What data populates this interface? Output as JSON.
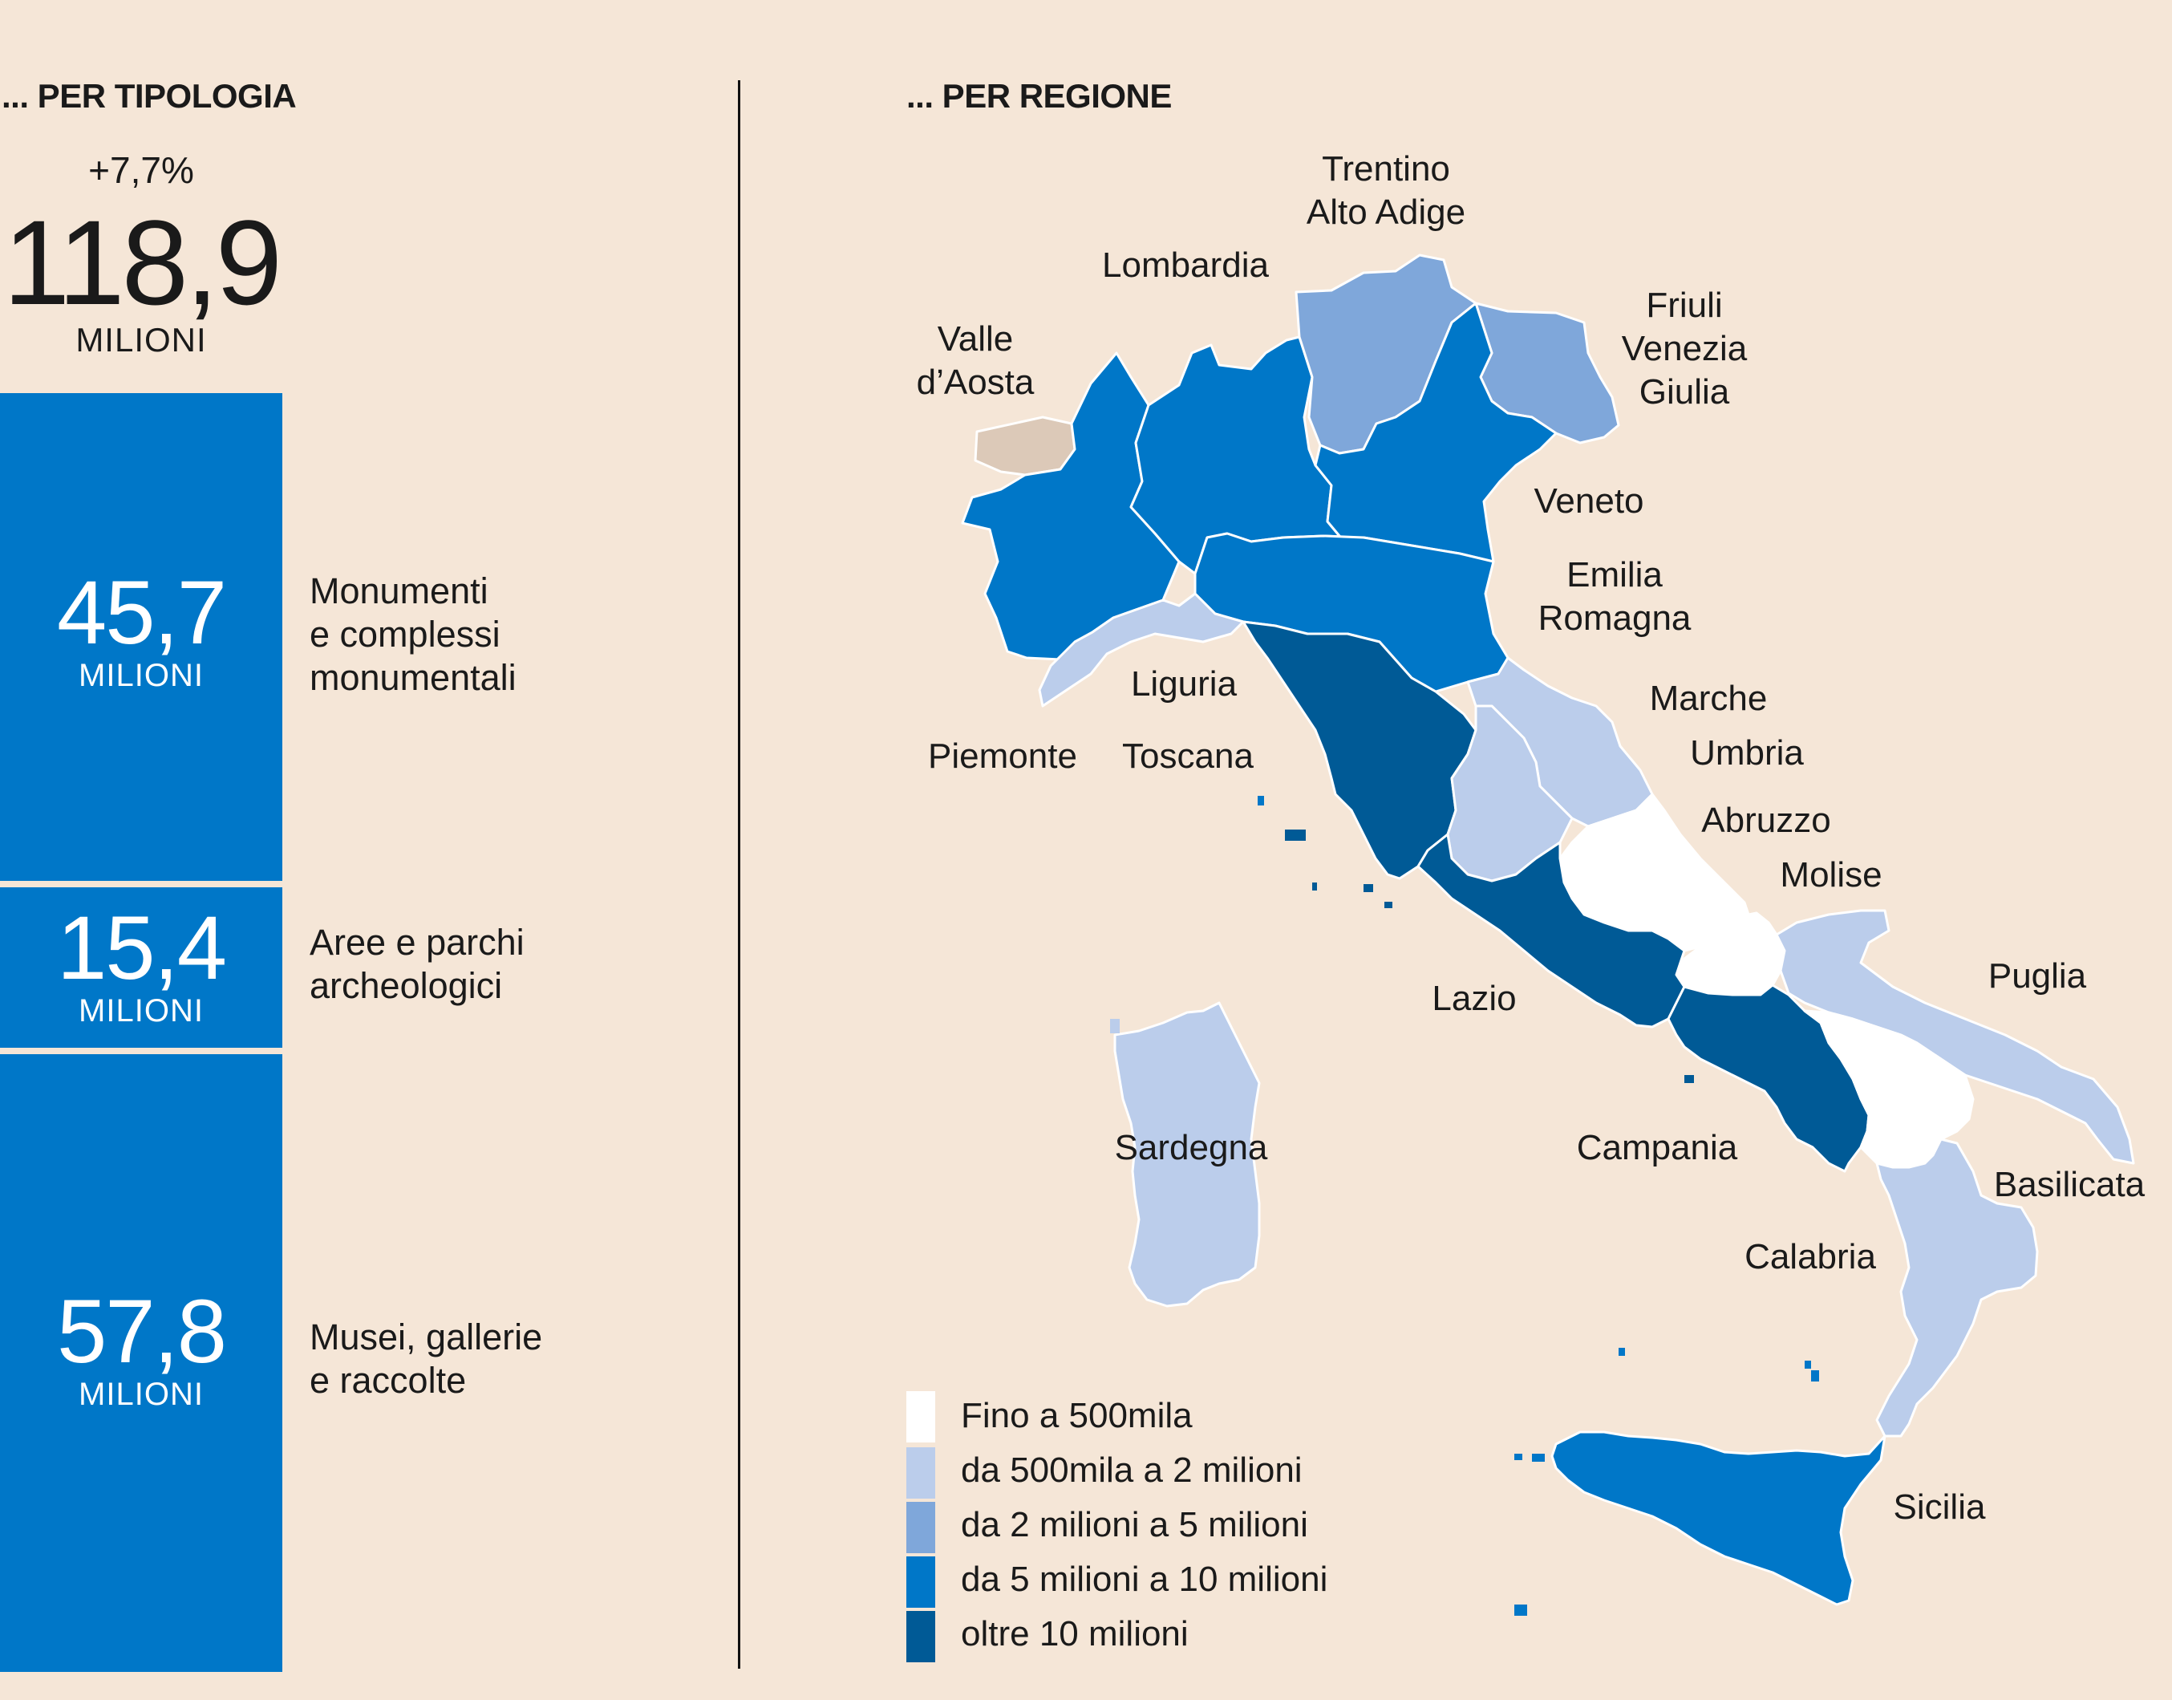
{
  "left_heading": "... PER TIPOLOGIA",
  "right_heading": "... PER REGIONE",
  "total": {
    "change": "+7,7%",
    "value": "118,9",
    "unit": "MILIONI"
  },
  "types": [
    {
      "value": "45,7",
      "unit": "MILIONI",
      "label_lines": [
        "Monumenti",
        "e complessi",
        "monumentali"
      ]
    },
    {
      "value": "15,4",
      "unit": "MILIONI",
      "label_lines": [
        "Aree e parchi",
        "archeologici"
      ]
    },
    {
      "value": "57,8",
      "unit": "MILIONI",
      "label_lines": [
        "Musei, gallerie",
        "e raccolte"
      ]
    }
  ],
  "legend": [
    {
      "label": "Fino a 500mila",
      "color": "#FFFFFF"
    },
    {
      "label": "da 500mila a 2 milioni",
      "color": "#BBCDEB"
    },
    {
      "label": "da 2 milioni a 5 milioni",
      "color": "#7FA7DA"
    },
    {
      "label": "da 5 milioni a 10 milioni",
      "color": "#0077C8"
    },
    {
      "label": "oltre 10 milioni",
      "color": "#005A96"
    }
  ],
  "regions": {
    "valle_aosta": {
      "lines": [
        "Valle",
        "d’Aosta"
      ],
      "color": "#DCC9B8"
    },
    "piemonte": {
      "lines": [
        "Piemonte"
      ],
      "class": 3
    },
    "lombardia": {
      "lines": [
        "Lombardia"
      ],
      "class": 3
    },
    "trentino": {
      "lines": [
        "Trentino",
        "Alto Adige"
      ],
      "class": 2
    },
    "friuli": {
      "lines": [
        "Friuli",
        "Venezia",
        "Giulia"
      ],
      "class": 2
    },
    "veneto": {
      "lines": [
        "Veneto"
      ],
      "class": 3
    },
    "emilia": {
      "lines": [
        "Emilia",
        "Romagna"
      ],
      "class": 3
    },
    "liguria": {
      "lines": [
        "Liguria"
      ],
      "class": 1
    },
    "toscana": {
      "lines": [
        "Toscana"
      ],
      "class": 4
    },
    "marche": {
      "lines": [
        "Marche"
      ],
      "class": 1
    },
    "umbria": {
      "lines": [
        "Umbria"
      ],
      "class": 1
    },
    "abruzzo": {
      "lines": [
        "Abruzzo"
      ],
      "class": 0
    },
    "molise": {
      "lines": [
        "Molise"
      ],
      "class": 0
    },
    "lazio": {
      "lines": [
        "Lazio"
      ],
      "class": 4
    },
    "campania": {
      "lines": [
        "Campania"
      ],
      "class": 4
    },
    "puglia": {
      "lines": [
        "Puglia"
      ],
      "class": 1
    },
    "basilicata": {
      "lines": [
        "Basilicata"
      ],
      "class": 0
    },
    "calabria": {
      "lines": [
        "Calabria"
      ],
      "class": 1
    },
    "sardegna": {
      "lines": [
        "Sardegna"
      ],
      "class": 1
    },
    "sicilia": {
      "lines": [
        "Sicilia"
      ],
      "class": 3
    }
  }
}
